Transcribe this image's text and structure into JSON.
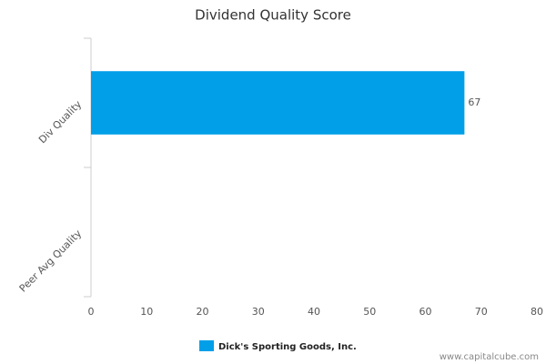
{
  "chart_data": {
    "type": "hbar",
    "title": "Dividend Quality Score",
    "categories": [
      "Div Quality",
      "Peer Avg Quality"
    ],
    "series": [
      {
        "name": "Dick's Sporting Goods, Inc.",
        "color": "#009fe8",
        "values": [
          67,
          null
        ]
      }
    ],
    "xlim": [
      0,
      80
    ],
    "xticks": [
      0,
      10,
      20,
      30,
      40,
      50,
      60,
      70,
      80
    ],
    "grid": false,
    "legend": "bottom",
    "credit": "www.capitalcube.com"
  }
}
